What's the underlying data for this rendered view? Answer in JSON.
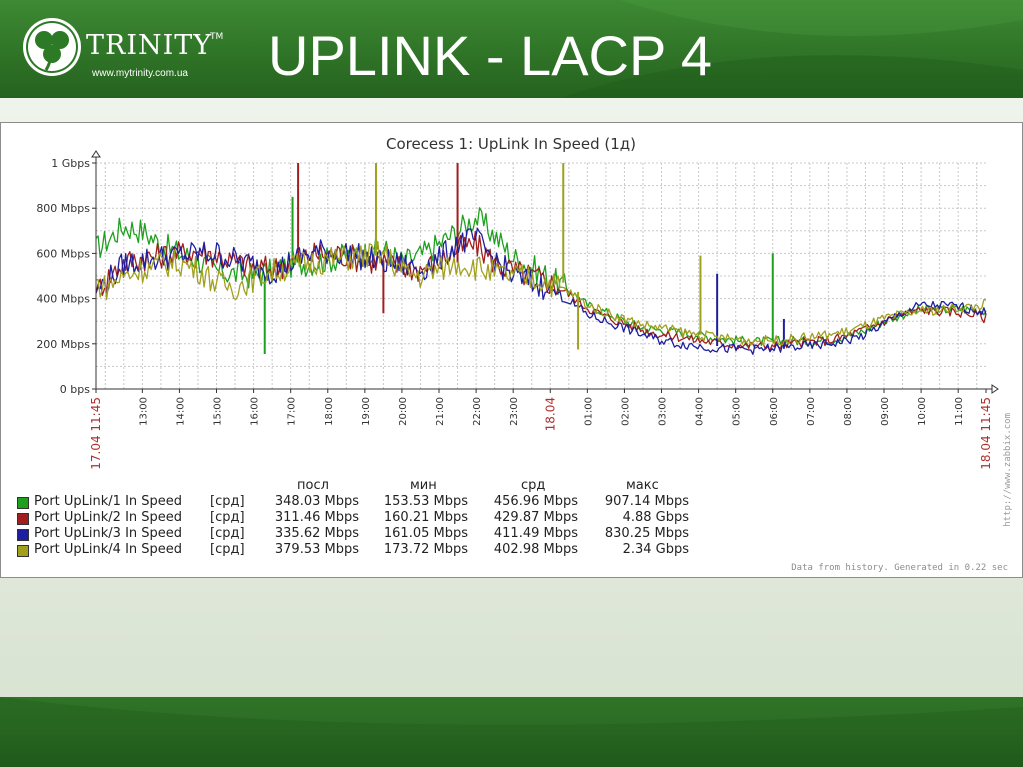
{
  "slide": {
    "title": "UPLINK - LACP 4",
    "logo": {
      "brand": "TRINITY",
      "tm": "TM",
      "url": "www.mytrinity.com.ua"
    }
  },
  "chart_data": {
    "type": "line",
    "title": "Corecess 1: UpLink In Speed  (1д)",
    "y_ticks": [
      "0 bps",
      "200 Mbps",
      "400 Mbps",
      "600 Mbps",
      "800 Mbps",
      "1 Gbps"
    ],
    "ylim": [
      0,
      1000
    ],
    "y_unit": "Mbps",
    "x_range": [
      11.75,
      35.75
    ],
    "x_ticks": [
      {
        "x": 11.75,
        "label": "17.04 11:45",
        "red": true
      },
      {
        "x": 13,
        "label": "13:00"
      },
      {
        "x": 14,
        "label": "14:00"
      },
      {
        "x": 15,
        "label": "15:00"
      },
      {
        "x": 16,
        "label": "16:00"
      },
      {
        "x": 17,
        "label": "17:00"
      },
      {
        "x": 18,
        "label": "18:00"
      },
      {
        "x": 19,
        "label": "19:00"
      },
      {
        "x": 20,
        "label": "20:00"
      },
      {
        "x": 21,
        "label": "21:00"
      },
      {
        "x": 22,
        "label": "22:00"
      },
      {
        "x": 23,
        "label": "23:00"
      },
      {
        "x": 24,
        "label": "18.04",
        "red": true
      },
      {
        "x": 25,
        "label": "01:00"
      },
      {
        "x": 26,
        "label": "02:00"
      },
      {
        "x": 27,
        "label": "03:00"
      },
      {
        "x": 28,
        "label": "04:00"
      },
      {
        "x": 29,
        "label": "05:00"
      },
      {
        "x": 30,
        "label": "06:00"
      },
      {
        "x": 31,
        "label": "07:00"
      },
      {
        "x": 32,
        "label": "08:00"
      },
      {
        "x": 33,
        "label": "09:00"
      },
      {
        "x": 34,
        "label": "10:00"
      },
      {
        "x": 35,
        "label": "11:00"
      },
      {
        "x": 35.75,
        "label": "18.04 11:45",
        "red": true
      }
    ],
    "grid": true,
    "legend_position": "bottom",
    "legend_headers": [
      "посл",
      "мин",
      "срд",
      "макс"
    ],
    "series": [
      {
        "name": "Port UpLink/1 In Speed",
        "func": "[срд]",
        "color": "#1ea01e",
        "last": "348.03 Mbps",
        "min": "153.53 Mbps",
        "avg": "456.96 Mbps",
        "max": "907.14 Mbps",
        "x": [
          11.75,
          12,
          12.5,
          13,
          13.5,
          14,
          14.5,
          15,
          15.5,
          16,
          16.5,
          17,
          17.5,
          18,
          18.5,
          19,
          19.5,
          20,
          20.5,
          21,
          21.5,
          22,
          22.5,
          23,
          23.5,
          24,
          24.5,
          25,
          25.5,
          26,
          26.5,
          27,
          27.5,
          28,
          28.5,
          29,
          29.5,
          30,
          30.5,
          31,
          31.5,
          32,
          32.5,
          33,
          33.5,
          34,
          34.5,
          35,
          35.5,
          35.75
        ],
        "y": [
          620,
          650,
          720,
          700,
          640,
          600,
          570,
          520,
          510,
          500,
          520,
          550,
          560,
          570,
          590,
          600,
          620,
          560,
          590,
          640,
          700,
          760,
          680,
          580,
          540,
          490,
          440,
          370,
          340,
          300,
          270,
          260,
          250,
          240,
          225,
          215,
          210,
          210,
          215,
          210,
          215,
          235,
          260,
          300,
          330,
          350,
          350,
          355,
          350,
          348
        ],
        "spikes": [
          {
            "x": 16.3,
            "y": 155
          },
          {
            "x": 17.05,
            "y": 850
          },
          {
            "x": 30,
            "y": 600
          }
        ]
      },
      {
        "name": "Port UpLink/2 In Speed",
        "func": "[срд]",
        "color": "#a01e1e",
        "last": "311.46 Mbps",
        "min": "160.21 Mbps",
        "avg": "429.87 Mbps",
        "max": "4.88 Gbps",
        "x": [
          11.75,
          12,
          12.5,
          13,
          13.5,
          14,
          14.5,
          15,
          15.5,
          16,
          16.5,
          17,
          17.5,
          18,
          18.5,
          19,
          19.5,
          20,
          20.5,
          21,
          21.5,
          22,
          22.5,
          23,
          23.5,
          24,
          24.5,
          25,
          25.5,
          26,
          26.5,
          27,
          27.5,
          28,
          28.5,
          29,
          29.5,
          30,
          30.5,
          31,
          31.5,
          32,
          32.5,
          33,
          33.5,
          34,
          34.5,
          35,
          35.5,
          35.75
        ],
        "y": [
          440,
          480,
          560,
          580,
          590,
          600,
          610,
          590,
          560,
          540,
          530,
          560,
          590,
          600,
          590,
          570,
          560,
          540,
          530,
          560,
          620,
          640,
          560,
          520,
          500,
          470,
          420,
          360,
          320,
          290,
          260,
          240,
          230,
          215,
          205,
          195,
          190,
          190,
          200,
          210,
          215,
          235,
          265,
          300,
          330,
          350,
          345,
          340,
          330,
          311
        ],
        "spikes": [
          {
            "x": 17.2,
            "y": 1000
          },
          {
            "x": 21.5,
            "y": 1000
          },
          {
            "x": 19.5,
            "y": 335
          }
        ]
      },
      {
        "name": "Port UpLink/3 In Speed",
        "func": "[срд]",
        "color": "#1e1ea0",
        "last": "335.62 Mbps",
        "min": "161.05 Mbps",
        "avg": "411.49 Mbps",
        "max": "830.25 Mbps",
        "x": [
          11.75,
          12,
          12.5,
          13,
          13.5,
          14,
          14.5,
          15,
          15.5,
          16,
          16.5,
          17,
          17.5,
          18,
          18.5,
          19,
          19.5,
          20,
          20.5,
          21,
          21.5,
          22,
          22.5,
          23,
          23.5,
          24,
          24.5,
          25,
          25.5,
          26,
          26.5,
          27,
          27.5,
          28,
          28.5,
          29,
          29.5,
          30,
          30.5,
          31,
          31.5,
          32,
          32.5,
          33,
          33.5,
          34,
          34.5,
          35,
          35.5,
          35.75
        ],
        "y": [
          430,
          470,
          550,
          570,
          580,
          590,
          600,
          600,
          570,
          550,
          520,
          560,
          600,
          610,
          600,
          580,
          560,
          550,
          530,
          570,
          650,
          660,
          570,
          500,
          470,
          440,
          390,
          330,
          300,
          270,
          240,
          215,
          200,
          190,
          180,
          178,
          175,
          178,
          185,
          190,
          200,
          215,
          240,
          290,
          340,
          370,
          370,
          365,
          350,
          335
        ],
        "spikes": [
          {
            "x": 28.5,
            "y": 510
          },
          {
            "x": 30.3,
            "y": 310
          }
        ]
      },
      {
        "name": "Port UpLink/4 In Speed",
        "func": "[срд]",
        "color": "#a0a01e",
        "last": "379.53 Mbps",
        "min": "173.72 Mbps",
        "avg": "402.98 Mbps",
        "max": "2.34 Gbps",
        "x": [
          11.75,
          12,
          12.5,
          13,
          13.5,
          14,
          14.5,
          15,
          15.5,
          16,
          16.5,
          17,
          17.5,
          18,
          18.5,
          19,
          19.5,
          20,
          20.5,
          21,
          21.5,
          22,
          22.5,
          23,
          23.5,
          24,
          24.5,
          25,
          25.5,
          26,
          26.5,
          27,
          27.5,
          28,
          28.5,
          29,
          29.5,
          30,
          30.5,
          31,
          31.5,
          32,
          32.5,
          33,
          33.5,
          34,
          34.5,
          35,
          35.5,
          35.75
        ],
        "y": [
          470,
          450,
          500,
          530,
          550,
          560,
          530,
          470,
          450,
          490,
          520,
          540,
          560,
          570,
          580,
          590,
          600,
          520,
          500,
          530,
          560,
          540,
          510,
          500,
          490,
          470,
          430,
          370,
          340,
          310,
          285,
          270,
          255,
          240,
          230,
          220,
          215,
          215,
          220,
          230,
          240,
          255,
          280,
          310,
          330,
          345,
          350,
          360,
          365,
          379
        ],
        "spikes": [
          {
            "x": 19.3,
            "y": 1000
          },
          {
            "x": 24.35,
            "y": 1000
          },
          {
            "x": 28.05,
            "y": 590
          },
          {
            "x": 24.75,
            "y": 175
          }
        ]
      }
    ],
    "footnote": "Data from history. Generated in 0.22 sec",
    "side_note": "http://www.zabbix.com"
  }
}
